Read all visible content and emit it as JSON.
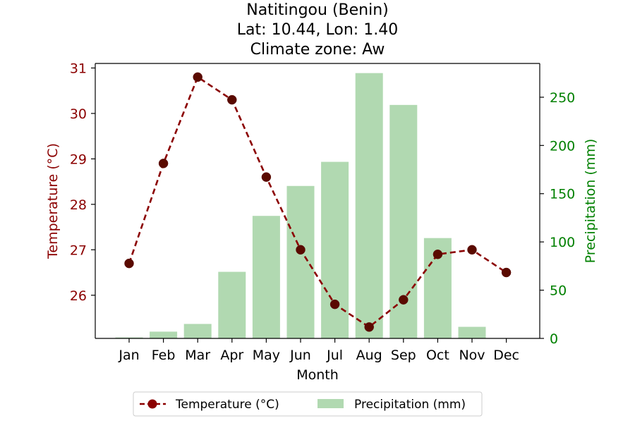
{
  "chart_data": {
    "type": "bar+line",
    "title_lines": [
      "Natitingou (Benin)",
      "Lat: 10.44, Lon: 1.40",
      "Climate zone: Aw"
    ],
    "xlabel": "Month",
    "categories": [
      "Jan",
      "Feb",
      "Mar",
      "Apr",
      "May",
      "Jun",
      "Jul",
      "Aug",
      "Sep",
      "Oct",
      "Nov",
      "Dec"
    ],
    "temperature": {
      "name": "Temperature (°C)",
      "axis_label": "Temperature (°C)",
      "axis": "left",
      "color": "#8b0000",
      "marker_color": "#5a0a00",
      "style": "dashed line with circle markers",
      "ylim": [
        25.05,
        31.1
      ],
      "ticks": [
        26,
        27,
        28,
        29,
        30,
        31
      ],
      "tick_labels": [
        "26",
        "27",
        "28",
        "29",
        "30",
        "31"
      ],
      "values": [
        26.7,
        28.9,
        30.8,
        30.3,
        28.6,
        27.0,
        25.8,
        25.3,
        25.9,
        26.9,
        27.0,
        26.5
      ]
    },
    "precipitation": {
      "name": "Precipitation (mm)",
      "axis_label": "Precipitation (mm)",
      "axis": "right",
      "color": "#b1d9b1",
      "axis_color": "#008000",
      "ylim": [
        0,
        285
      ],
      "ticks": [
        0,
        50,
        100,
        150,
        200,
        250
      ],
      "tick_labels": [
        "0",
        "50",
        "100",
        "150",
        "200",
        "250"
      ],
      "values": [
        1,
        7,
        15,
        69,
        127,
        158,
        183,
        275,
        242,
        104,
        12,
        0
      ]
    },
    "legend": {
      "placement": "bottom-center",
      "entries": [
        "Temperature (°C)",
        "Precipitation (mm)"
      ]
    },
    "grid": false
  }
}
